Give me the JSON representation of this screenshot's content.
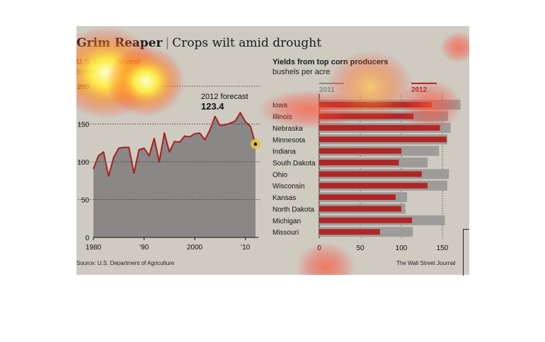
{
  "headline": {
    "title": "Grim Reaper",
    "subtitle": "Crops wilt amid drought"
  },
  "source": "Source: U.S. Department of Agriculture",
  "publisher": "The Wall Street Journal",
  "colors": {
    "panel": "#cfcbc1",
    "area": "#8a8886",
    "line": "#a82020",
    "bar2011": "#9e9c99",
    "bar2012": "#b02626",
    "forecast_dot": "#e4c23a"
  },
  "chart_data": [
    {
      "type": "area",
      "title": "U.S. corn harvest",
      "ylabel": "bushels per acre",
      "x_ticks": [
        "1980",
        "'90",
        "2000",
        "'10"
      ],
      "x_tick_values": [
        1980,
        1990,
        2000,
        2010
      ],
      "y_ticks": [
        "0",
        "50",
        "100",
        "150",
        "200"
      ],
      "y_tick_values": [
        0,
        50,
        100,
        150,
        200
      ],
      "xlim": [
        1980,
        2012
      ],
      "ylim": [
        0,
        200
      ],
      "grid": true,
      "annotation": {
        "label": "2012 forecast",
        "value": "123.4",
        "x": 2012,
        "y": 123.4
      },
      "series": [
        {
          "x": [
            1980,
            1981,
            1982,
            1983,
            1984,
            1985,
            1986,
            1987,
            1988,
            1989,
            1990,
            1991,
            1992,
            1993,
            1994,
            1995,
            1996,
            1997,
            1998,
            1999,
            2000,
            2001,
            2002,
            2003,
            2004,
            2005,
            2006,
            2007,
            2008,
            2009,
            2010,
            2011,
            2012
          ],
          "y": [
            91,
            108,
            113,
            81,
            106,
            118,
            119,
            119,
            85,
            116,
            118,
            108,
            131,
            100,
            138,
            113,
            127,
            126,
            134,
            133,
            137,
            138,
            129,
            142,
            160,
            148,
            149,
            151,
            154,
            165,
            153,
            147,
            123.4
          ]
        }
      ]
    },
    {
      "type": "bar",
      "title": "Yields from top corn producers",
      "ylabel": "bushels per acre",
      "categories": [
        "Iowa",
        "Illinois",
        "Nebraska",
        "Minnesota",
        "Indiana",
        "South Dakota",
        "Ohio",
        "Wisconsin",
        "Kansas",
        "North Dakota",
        "Michigan",
        "Missouri"
      ],
      "x_ticks": [
        "0",
        "50",
        "100",
        "150"
      ],
      "x_tick_values": [
        0,
        50,
        100,
        150
      ],
      "xlim": [
        0,
        175
      ],
      "grid": true,
      "series": [
        {
          "name": "2011",
          "values": [
            172,
            157,
            160,
            156,
            146,
            132,
            158,
            156,
            107,
            105,
            153,
            114
          ]
        },
        {
          "name": "2012",
          "values": [
            137,
            115,
            147,
            155,
            100,
            97,
            125,
            132,
            93,
            100,
            113,
            74
          ]
        }
      ]
    }
  ]
}
